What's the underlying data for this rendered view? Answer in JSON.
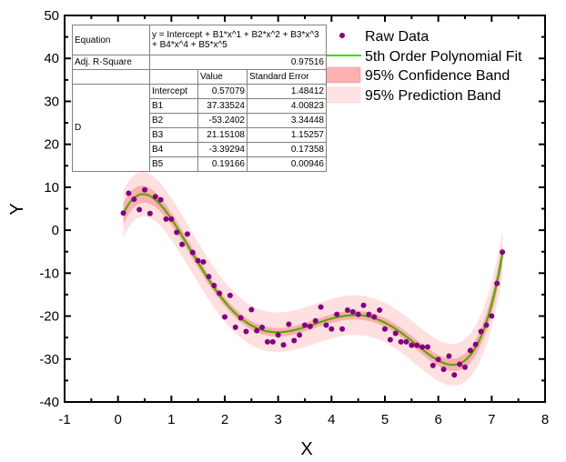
{
  "chart_data": {
    "type": "scatter",
    "xlabel": "X",
    "ylabel": "Y",
    "xlim": [
      -1,
      8
    ],
    "ylim": [
      -40,
      50
    ],
    "xticks": [
      -1,
      0,
      1,
      2,
      3,
      4,
      5,
      6,
      7,
      8
    ],
    "yticks": [
      -40,
      -30,
      -20,
      -10,
      0,
      10,
      20,
      30,
      40,
      50
    ],
    "grid": false,
    "legend_placement": "top-right",
    "legend": [
      "Raw Data",
      "5th Order Polynomial Fit",
      "95% Confidence Band",
      "95% Prediction Band"
    ],
    "colors": {
      "points": "#800080",
      "fit": "#33cc00",
      "confidence": "#ffaaaa",
      "prediction": "#ffe0e0"
    },
    "raw_data": {
      "x": [
        0.1,
        0.2,
        0.3,
        0.4,
        0.5,
        0.6,
        0.7,
        0.8,
        0.9,
        1.0,
        1.1,
        1.2,
        1.3,
        1.4,
        1.5,
        1.6,
        1.7,
        1.8,
        1.9,
        2.0,
        2.1,
        2.2,
        2.3,
        2.4,
        2.5,
        2.6,
        2.7,
        2.8,
        2.9,
        3.0,
        3.1,
        3.2,
        3.3,
        3.4,
        3.5,
        3.6,
        3.7,
        3.8,
        3.9,
        4.0,
        4.1,
        4.2,
        4.3,
        4.4,
        4.5,
        4.6,
        4.7,
        4.8,
        4.9,
        5.0,
        5.1,
        5.2,
        5.3,
        5.4,
        5.5,
        5.6,
        5.7,
        5.8,
        5.9,
        6.0,
        6.1,
        6.2,
        6.3,
        6.4,
        6.5,
        6.6,
        6.7,
        6.8,
        6.9,
        7.0,
        7.1,
        7.2
      ],
      "y": [
        4.0,
        8.6,
        7.2,
        4.8,
        9.4,
        3.9,
        7.8,
        7.1,
        2.6,
        2.6,
        -0.5,
        -3.3,
        -0.9,
        -5.2,
        -7.1,
        -7.4,
        -10.8,
        -12.9,
        -14.7,
        -20.2,
        -15.2,
        -22.6,
        -20.4,
        -23.6,
        -18.5,
        -23.4,
        -22.6,
        -26.0,
        -26.0,
        -24.4,
        -26.7,
        -21.9,
        -25.7,
        -24.4,
        -22.1,
        -22.4,
        -21.1,
        -17.9,
        -22.1,
        -23.0,
        -19.6,
        -23.0,
        -18.6,
        -19.0,
        -19.6,
        -17.5,
        -19.6,
        -20.2,
        -18.6,
        -23.0,
        -25.5,
        -24.0,
        -26.0,
        -26.0,
        -26.8,
        -26.8,
        -27.2,
        -27.2,
        -31.5,
        -30.1,
        -32.4,
        -29.3,
        -33.7,
        -31.2,
        -31.9,
        -28.0,
        -26.6,
        -23.6,
        -22.1,
        -20.0,
        -12.4,
        -5.1
      ]
    },
    "fit": {
      "x_range": [
        0.1,
        7.2
      ],
      "coefficients": [
        0.57079,
        37.33524,
        -53.2402,
        21.15108,
        -3.39294,
        0.19166
      ],
      "confidence_halfwidth": {
        "center": 1.0,
        "ends": 2.5
      },
      "prediction_halfwidth": {
        "center": 4.6,
        "ends": 5.5
      }
    }
  },
  "table": {
    "equation_label": "Equation",
    "equation": "y = Intercept + B1*x^1 + B2*x^2 + B3*x^3 + B4*x^4 + B5*x^5",
    "adj_r_label": "Adj. R-Square",
    "adj_r_value": "0.97516",
    "col_value": "Value",
    "col_error": "Standard Error",
    "group_label": "D",
    "rows": [
      {
        "name": "Intercept",
        "value": "0.57079",
        "error": "1.48412"
      },
      {
        "name": "B1",
        "value": "37.33524",
        "error": "4.00823"
      },
      {
        "name": "B2",
        "value": "-53.2402",
        "error": "3.34448"
      },
      {
        "name": "B3",
        "value": "21.15108",
        "error": "1.15257"
      },
      {
        "name": "B4",
        "value": "-3.39294",
        "error": "0.17358"
      },
      {
        "name": "B5",
        "value": "0.19166",
        "error": "0.00946"
      }
    ]
  }
}
